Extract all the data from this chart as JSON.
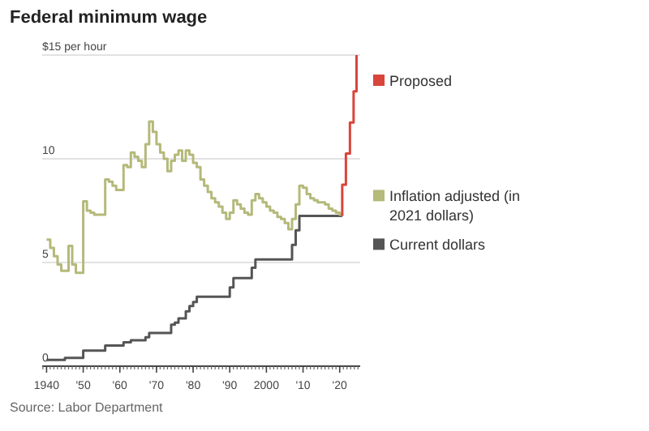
{
  "chart_data": {
    "type": "step",
    "title": "Federal minimum wage",
    "xlim": [
      1938.8,
      2025.6
    ],
    "xticks": [
      {
        "value": 1940,
        "label": "1940"
      },
      {
        "value": 1950,
        "label": "'50"
      },
      {
        "value": 1960,
        "label": "'60"
      },
      {
        "value": 1970,
        "label": "'70"
      },
      {
        "value": 1980,
        "label": "'80"
      },
      {
        "value": 1990,
        "label": "'90"
      },
      {
        "value": 2000,
        "label": "2000"
      },
      {
        "value": 2010,
        "label": "'10"
      },
      {
        "value": 2020,
        "label": "'20"
      }
    ],
    "ylim": [
      0,
      15
    ],
    "yticks": [
      0,
      5,
      10,
      {
        "value": 15,
        "label": "$15 per hour"
      }
    ],
    "grid": "y",
    "legend": "right",
    "series": [
      {
        "name": "Proposed",
        "color": "#d9453b",
        "x": [
          2020.7,
          2020.7,
          2021.7,
          2022.8,
          2023.8,
          2024.6
        ],
        "values": [
          7.25,
          8.75,
          10.25,
          11.75,
          13.25,
          15
        ]
      },
      {
        "name": "Inflation adjusted (in 2021 dollars)",
        "color": "#b5b97a",
        "x": [
          1940,
          1941,
          1942,
          1943,
          1944,
          1946,
          1947,
          1948,
          1950,
          1951,
          1952,
          1953,
          1956,
          1957,
          1958,
          1959,
          1961,
          1962,
          1963,
          1964,
          1965,
          1966,
          1967,
          1968,
          1969,
          1970,
          1971,
          1972,
          1973,
          1974,
          1975,
          1976,
          1977,
          1978,
          1979,
          1980,
          1981,
          1982,
          1983,
          1984,
          1985,
          1986,
          1987,
          1988,
          1989,
          1990,
          1991,
          1992,
          1993,
          1994,
          1995,
          1996,
          1997,
          1998,
          1999,
          2000,
          2001,
          2002,
          2003,
          2004,
          2005,
          2006,
          2007,
          2008,
          2009,
          2010,
          2011,
          2012,
          2013,
          2014,
          2016,
          2017,
          2018,
          2019,
          2020,
          2020.7
        ],
        "values": [
          6.1,
          5.7,
          5.3,
          4.9,
          4.6,
          5.8,
          4.9,
          4.5,
          7.95,
          7.5,
          7.4,
          7.3,
          9.0,
          8.9,
          8.7,
          8.5,
          9.7,
          9.6,
          10.3,
          10.1,
          9.9,
          9.6,
          10.7,
          11.8,
          11.3,
          10.7,
          10.3,
          10.0,
          9.4,
          9.9,
          10.2,
          10.4,
          9.9,
          10.4,
          10.2,
          9.8,
          9.6,
          9.0,
          8.7,
          8.4,
          8.1,
          7.9,
          7.7,
          7.4,
          7.1,
          7.4,
          8.0,
          7.8,
          7.6,
          7.4,
          7.3,
          8.0,
          8.3,
          8.1,
          7.9,
          7.7,
          7.5,
          7.4,
          7.2,
          7.1,
          6.9,
          6.6,
          7.1,
          7.8,
          8.7,
          8.6,
          8.3,
          8.1,
          8.0,
          7.9,
          7.8,
          7.6,
          7.5,
          7.4,
          7.3,
          7.25
        ]
      },
      {
        "name": "Current dollars",
        "color": "#555555",
        "x": [
          1940,
          1945,
          1950,
          1956,
          1961,
          1963,
          1967,
          1968,
          1974,
          1975,
          1976,
          1978,
          1979,
          1980,
          1981,
          1990,
          1991,
          1996,
          1997,
          2007,
          2008,
          2009,
          2020.7
        ],
        "values": [
          0.3,
          0.4,
          0.75,
          1.0,
          1.15,
          1.25,
          1.4,
          1.6,
          2.0,
          2.1,
          2.3,
          2.65,
          2.9,
          3.1,
          3.35,
          3.8,
          4.25,
          4.75,
          5.15,
          5.85,
          6.55,
          7.25,
          7.25
        ]
      }
    ],
    "annotations": [
      "Source: Labor Department"
    ]
  }
}
